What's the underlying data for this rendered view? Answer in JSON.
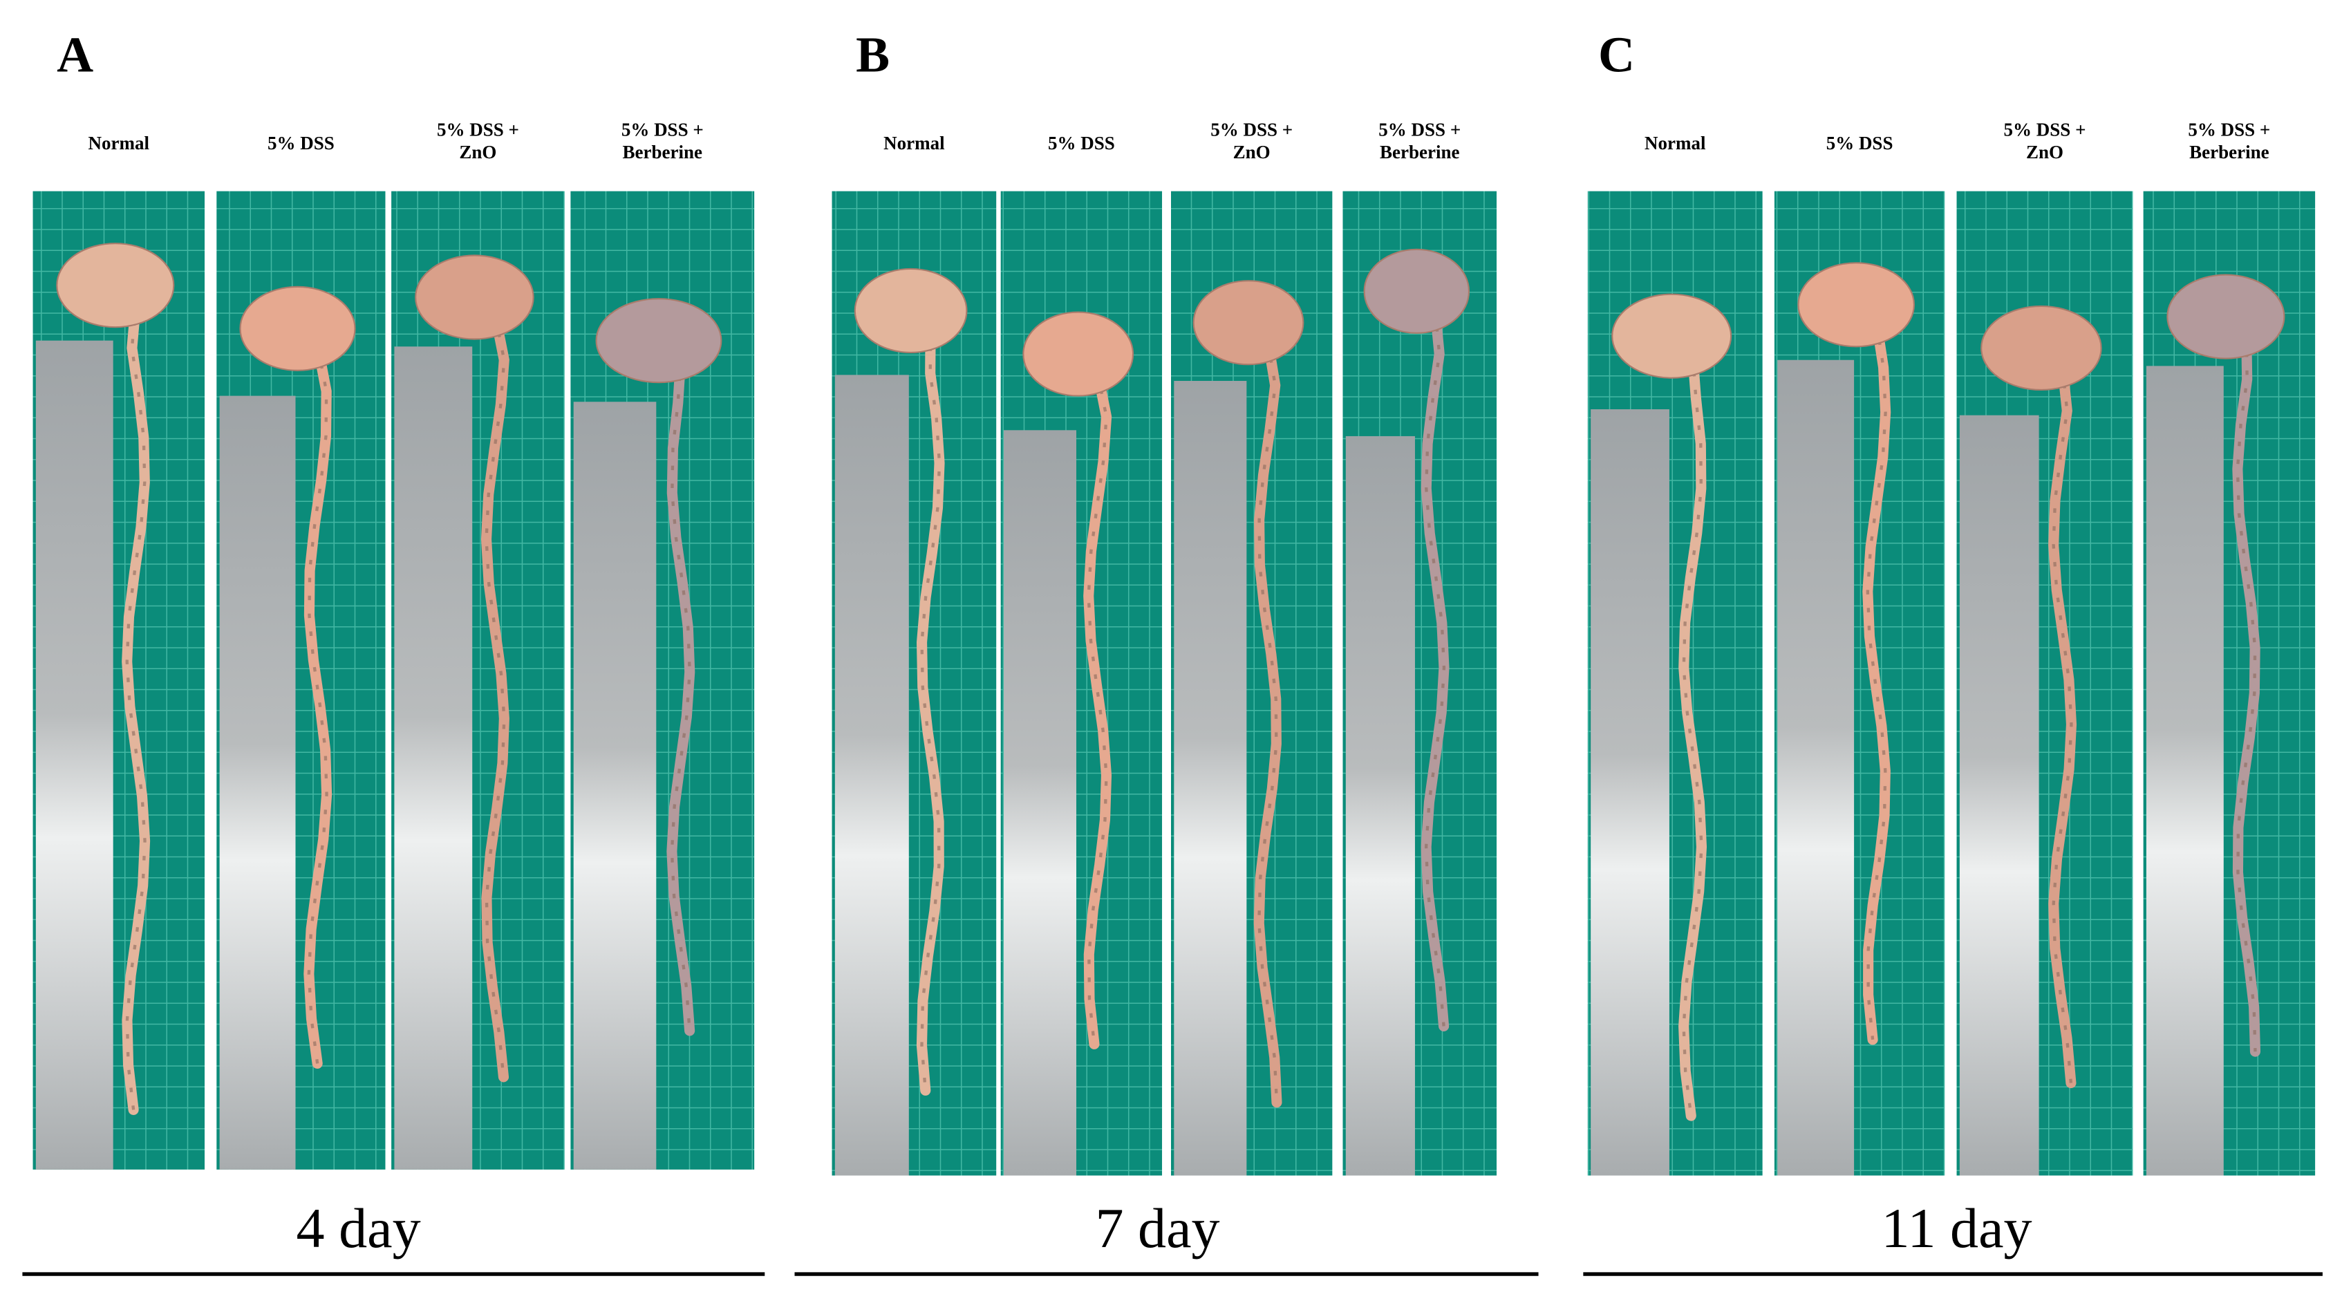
{
  "panels": [
    {
      "letter": "A",
      "columns": [
        {
          "lines": [
            "Normal"
          ]
        },
        {
          "lines": [
            "5% DSS"
          ]
        },
        {
          "lines": [
            "5% DSS +",
            "ZnO"
          ]
        },
        {
          "lines": [
            "5% DSS +",
            "Berberine"
          ]
        }
      ],
      "day": "4 day"
    },
    {
      "letter": "B",
      "columns": [
        {
          "lines": [
            "Normal"
          ]
        },
        {
          "lines": [
            "5% DSS"
          ]
        },
        {
          "lines": [
            "5% DSS +",
            "ZnO"
          ]
        },
        {
          "lines": [
            "5% DSS +",
            "Berberine"
          ]
        }
      ],
      "day": "7 day"
    },
    {
      "letter": "C",
      "columns": [
        {
          "lines": [
            "Normal"
          ]
        },
        {
          "lines": [
            "5% DSS"
          ]
        },
        {
          "lines": [
            "5% DSS +",
            "ZnO"
          ]
        },
        {
          "lines": [
            "5% DSS +",
            "Berberine"
          ]
        }
      ],
      "day": "11 day"
    }
  ]
}
